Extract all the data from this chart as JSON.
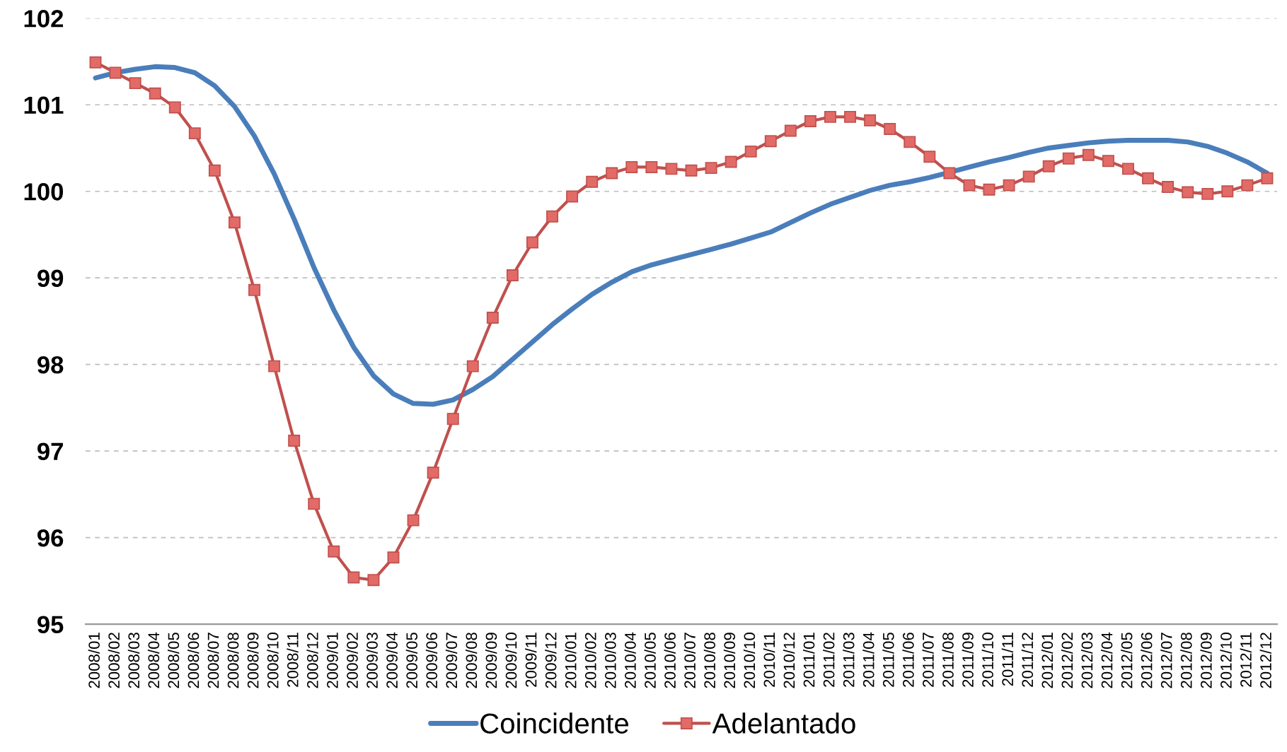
{
  "chart_data": {
    "type": "line",
    "categories": [
      "2008/01",
      "2008/02",
      "2008/03",
      "2008/04",
      "2008/05",
      "2008/06",
      "2008/07",
      "2008/08",
      "2008/09",
      "2008/10",
      "2008/11",
      "2008/12",
      "2009/01",
      "2009/02",
      "2009/03",
      "2009/04",
      "2009/05",
      "2009/06",
      "2009/07",
      "2009/08",
      "2009/09",
      "2009/10",
      "2009/11",
      "2009/12",
      "2010/01",
      "2010/02",
      "2010/03",
      "2010/04",
      "2010/05",
      "2010/06",
      "2010/07",
      "2010/08",
      "2010/09",
      "2010/10",
      "2010/11",
      "2010/12",
      "2011/01",
      "2011/02",
      "2011/03",
      "2011/04",
      "2011/05",
      "2011/06",
      "2011/07",
      "2011/08",
      "2011/09",
      "2011/10",
      "2011/11",
      "2011/12",
      "2012/01",
      "2012/02",
      "2012/03",
      "2012/04",
      "2012/05",
      "2012/06",
      "2012/07",
      "2012/08",
      "2012/09",
      "2012/10",
      "2012/11",
      "2012/12"
    ],
    "series": [
      {
        "name": "Coincidente",
        "color": "#4a7ebb",
        "marker": "none",
        "values": [
          101.31,
          101.37,
          101.41,
          101.44,
          101.43,
          101.37,
          101.22,
          100.98,
          100.64,
          100.2,
          99.68,
          99.12,
          98.63,
          98.2,
          97.87,
          97.66,
          97.55,
          97.54,
          97.59,
          97.71,
          97.86,
          98.06,
          98.26,
          98.46,
          98.64,
          98.81,
          98.95,
          99.07,
          99.15,
          99.21,
          99.27,
          99.33,
          99.39,
          99.46,
          99.53,
          99.64,
          99.75,
          99.85,
          99.93,
          100.01,
          100.07,
          100.11,
          100.16,
          100.22,
          100.28,
          100.34,
          100.39,
          100.45,
          100.5,
          100.53,
          100.56,
          100.58,
          100.59,
          100.59,
          100.59,
          100.57,
          100.52,
          100.44,
          100.34,
          100.21
        ]
      },
      {
        "name": "Adelantado",
        "color": "#c0504d",
        "marker": "square",
        "values": [
          101.49,
          101.37,
          101.25,
          101.13,
          100.97,
          100.67,
          100.24,
          99.64,
          98.86,
          97.98,
          97.12,
          96.39,
          95.84,
          95.54,
          95.51,
          95.77,
          96.2,
          96.75,
          97.37,
          97.98,
          98.54,
          99.03,
          99.41,
          99.71,
          99.94,
          100.11,
          100.21,
          100.28,
          100.28,
          100.26,
          100.24,
          100.27,
          100.34,
          100.46,
          100.58,
          100.7,
          100.81,
          100.86,
          100.86,
          100.82,
          100.72,
          100.57,
          100.4,
          100.21,
          100.07,
          100.02,
          100.07,
          100.17,
          100.29,
          100.38,
          100.42,
          100.35,
          100.26,
          100.15,
          100.05,
          99.99,
          99.97,
          100.0,
          100.07,
          100.15
        ]
      }
    ],
    "ylim": [
      95,
      102
    ],
    "yticks": [
      95,
      96,
      97,
      98,
      99,
      100,
      101,
      102
    ],
    "grid": "y",
    "legend": "bottom",
    "line_style": "solid"
  }
}
